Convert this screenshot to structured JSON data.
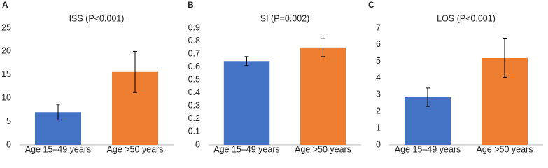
{
  "chart_data": [
    {
      "type": "bar",
      "panel_label": "A",
      "title": "ISS (P<0.001)",
      "categories": [
        "Age 15–49 years",
        "Age >50 years"
      ],
      "values": [
        7.0,
        15.6
      ],
      "error": [
        1.7,
        4.4
      ],
      "colors": [
        "#4472c4",
        "#ed7d31"
      ],
      "ylim": [
        0,
        25
      ],
      "yticks": [
        0,
        5,
        10,
        15,
        20,
        25
      ],
      "grid": false
    },
    {
      "type": "bar",
      "panel_label": "B",
      "title": "SI (P=0.002)",
      "categories": [
        "Age 15–49 years",
        "Age >50 years"
      ],
      "values": [
        0.645,
        0.75
      ],
      "error": [
        0.035,
        0.07
      ],
      "colors": [
        "#4472c4",
        "#ed7d31"
      ],
      "ylim": [
        0,
        0.9
      ],
      "yticks": [
        0,
        0.1,
        0.2,
        0.3,
        0.4,
        0.5,
        0.6,
        0.7,
        0.8,
        0.9
      ],
      "grid": false
    },
    {
      "type": "bar",
      "panel_label": "C",
      "title": "LOS (P<0.001)",
      "categories": [
        "Age 15–49 years",
        "Age >50 years"
      ],
      "values": [
        2.85,
        5.2
      ],
      "error": [
        0.55,
        1.15
      ],
      "colors": [
        "#4472c4",
        "#ed7d31"
      ],
      "ylim": [
        0,
        7
      ],
      "yticks": [
        0,
        1,
        2,
        3,
        4,
        5,
        6,
        7
      ],
      "grid": false
    }
  ]
}
